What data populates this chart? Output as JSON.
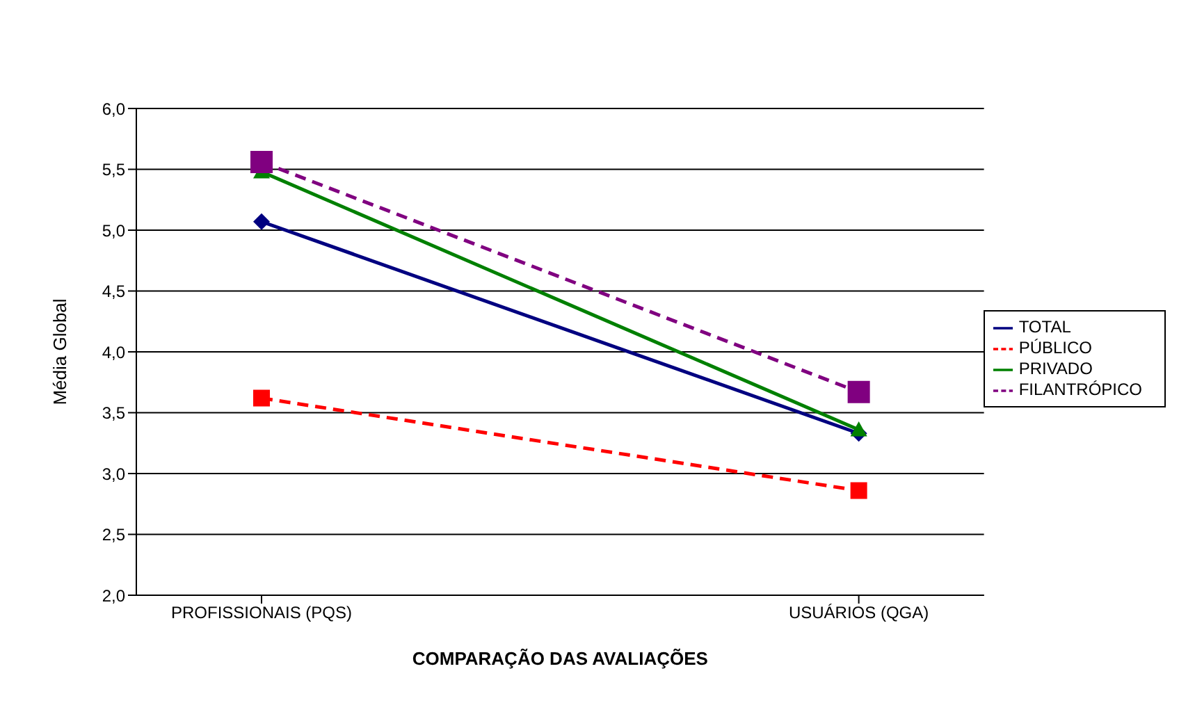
{
  "chart_data": {
    "type": "line",
    "xlabel": "COMPARAÇÃO DAS AVALIAÇÕES",
    "ylabel": "Média Global",
    "categories": [
      "PROFISSIONAIS (PQS)",
      "USUÁRIOS (QGA)"
    ],
    "series": [
      {
        "name": "TOTAL",
        "color": "#000080",
        "values": [
          5.07,
          3.33
        ],
        "marker": "diamond",
        "line_style": "solid"
      },
      {
        "name": "PÚBLICO",
        "color": "#ff0000",
        "values": [
          3.62,
          2.86
        ],
        "marker": "square",
        "line_style": "dashed"
      },
      {
        "name": "PRIVADO",
        "color": "#008000",
        "values": [
          5.48,
          3.36
        ],
        "marker": "triangle",
        "line_style": "solid"
      },
      {
        "name": "FILANTRÓPICO",
        "color": "#800080",
        "values": [
          5.56,
          3.67
        ],
        "marker": "square",
        "line_style": "dashed"
      }
    ],
    "ylim": [
      2,
      6
    ],
    "yticks": [
      {
        "value": 2,
        "label": "2,0"
      },
      {
        "value": 2.5,
        "label": "2,5"
      },
      {
        "value": 3,
        "label": "3,0"
      },
      {
        "value": 3.5,
        "label": "3,5"
      },
      {
        "value": 4,
        "label": "4,0"
      },
      {
        "value": 4.5,
        "label": "4,5"
      },
      {
        "value": 5,
        "label": "5,0"
      },
      {
        "value": 5.5,
        "label": "5,5"
      },
      {
        "value": 6,
        "label": "6,0"
      }
    ],
    "grid": "y",
    "legend": "right"
  }
}
